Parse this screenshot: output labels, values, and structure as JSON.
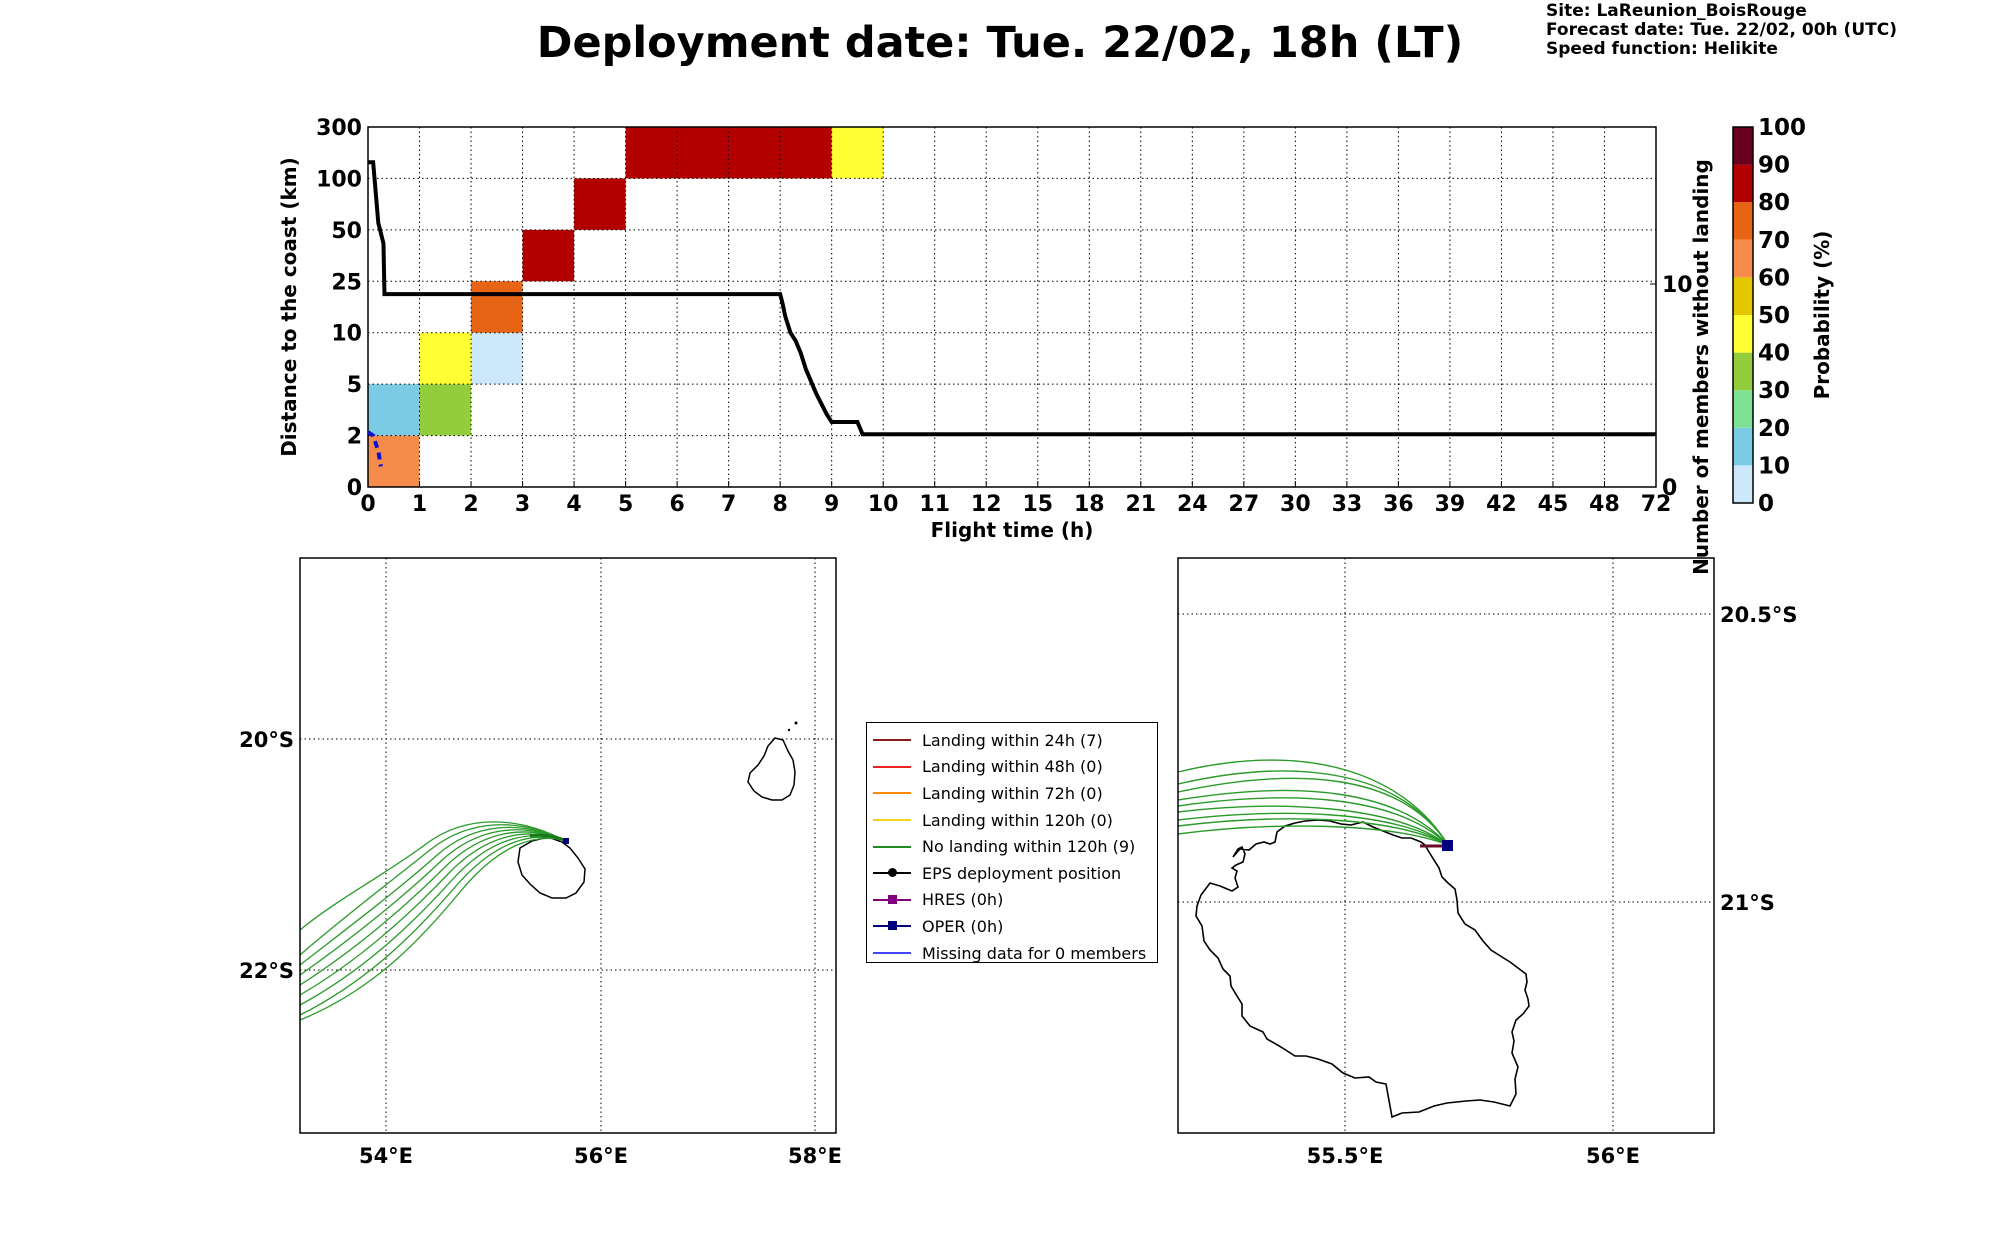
{
  "title": "Deployment date: Tue. 22/02, 18h (LT)",
  "meta": {
    "site": "Site: LaReunion_BoisRouge",
    "forecast": "Forecast date: Tue. 22/02, 00h (UTC)",
    "speed": "Speed function: Helikite"
  },
  "chart_data": [
    {
      "type": "heatmap",
      "xlabel": "Flight time (h)",
      "ylabel": "Distance to the coast (km)",
      "y2label": "Number of members without landing",
      "x_ticks": [
        "0",
        "1",
        "2",
        "3",
        "4",
        "5",
        "6",
        "7",
        "8",
        "9",
        "10",
        "11",
        "12",
        "15",
        "18",
        "21",
        "24",
        "27",
        "30",
        "33",
        "36",
        "39",
        "42",
        "45",
        "48",
        "72"
      ],
      "y_ticks": [
        "0",
        "2",
        "5",
        "10",
        "25",
        "50",
        "100",
        "300"
      ],
      "y2_ticks": [
        "0",
        "10"
      ],
      "grid": true,
      "cells": [
        {
          "x": "0-1",
          "y": "0-2",
          "prob": 70
        },
        {
          "x": "0-1",
          "y": "2-5",
          "prob": 20
        },
        {
          "x": "1-2",
          "y": "2-5",
          "prob": 40
        },
        {
          "x": "1-2",
          "y": "5-10",
          "prob": 50
        },
        {
          "x": "2-3",
          "y": "5-10",
          "prob": 10
        },
        {
          "x": "2-3",
          "y": "10-25",
          "prob": 80
        },
        {
          "x": "3-4",
          "y": "25-50",
          "prob": 90
        },
        {
          "x": "4-5",
          "y": "50-100",
          "prob": 90
        },
        {
          "x": "5-9",
          "y": "100-300",
          "prob": 90
        },
        {
          "x": "9-10",
          "y": "100-300",
          "prob": 50
        }
      ],
      "members_without_landing": [
        [
          0,
          16
        ],
        [
          0.1,
          16
        ],
        [
          0.2,
          13
        ],
        [
          0.3,
          12
        ],
        [
          0.32,
          9.5
        ],
        [
          8.0,
          9.5
        ],
        [
          8.05,
          9
        ],
        [
          8.1,
          8.4
        ],
        [
          8.2,
          7.6
        ],
        [
          8.3,
          7.2
        ],
        [
          8.4,
          6.6
        ],
        [
          8.5,
          5.8
        ],
        [
          8.6,
          5.2
        ],
        [
          8.7,
          4.6
        ],
        [
          8.8,
          4.1
        ],
        [
          8.9,
          3.6
        ],
        [
          9.0,
          3.2
        ],
        [
          9.5,
          3.2
        ],
        [
          9.6,
          2.6
        ],
        [
          72,
          2.6
        ]
      ],
      "oper_distance": [
        [
          0,
          2.2
        ],
        [
          0.1,
          2.0
        ],
        [
          0.2,
          1.4
        ],
        [
          0.25,
          0.8
        ]
      ],
      "colorbar": {
        "label": "Probability (%)",
        "ticks": [
          "0",
          "10",
          "20",
          "30",
          "40",
          "50",
          "60",
          "70",
          "80",
          "90",
          "100"
        ],
        "colors": [
          "#cce8fa",
          "#7ccbe5",
          "#7de292",
          "#94cd3c",
          "#ffff33",
          "#e3c800",
          "#f58c4b",
          "#e66414",
          "#b30000",
          "#680020"
        ]
      }
    },
    {
      "type": "map",
      "x_ticks": [
        "54°E",
        "56°E",
        "58°E"
      ],
      "y_ticks": [
        "20°S",
        "22°S"
      ]
    },
    {
      "type": "map",
      "x_ticks": [
        "55.5°E",
        "56°E"
      ],
      "y_ticks": [
        "20.5°S",
        "21°S"
      ]
    }
  ],
  "legend": [
    {
      "label": "Landing within 24h (7)",
      "color": "#8b1a1a",
      "marker": "none"
    },
    {
      "label": "Landing within 48h (0)",
      "color": "#ee2222",
      "marker": "none"
    },
    {
      "label": "Landing within 72h (0)",
      "color": "#ff8800",
      "marker": "none"
    },
    {
      "label": "Landing within 120h (0)",
      "color": "#f2d21b",
      "marker": "none"
    },
    {
      "label": "No landing within 120h (9)",
      "color": "#218b21",
      "marker": "none"
    },
    {
      "label": "EPS deployment position",
      "color": "#000000",
      "marker": "round"
    },
    {
      "label": "HRES (0h)",
      "color": "#800080",
      "marker": "square"
    },
    {
      "label": "OPER (0h)",
      "color": "#00007f",
      "marker": "square"
    },
    {
      "label": "Missing data for 0 members",
      "color": "#4444ff",
      "marker": "none"
    }
  ]
}
